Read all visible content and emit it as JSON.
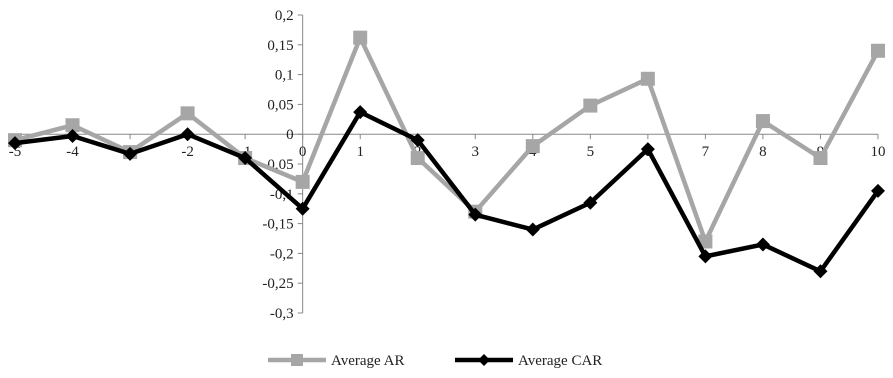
{
  "chart_data": {
    "type": "line",
    "title": "",
    "xlabel": "",
    "ylabel": "",
    "x": [
      -5,
      -4,
      -3,
      -2,
      -1,
      0,
      1,
      2,
      3,
      4,
      5,
      6,
      7,
      8,
      9,
      10
    ],
    "ylim": [
      -0.3,
      0.2
    ],
    "xlim": [
      -5,
      10
    ],
    "y_ticks": [
      0.2,
      0.15,
      0.1,
      0.05,
      0,
      -0.05,
      -0.1,
      -0.15,
      -0.2,
      -0.25,
      -0.3
    ],
    "y_tick_labels": [
      "0,2",
      "0,15",
      "0,1",
      "0,05",
      "0",
      "-0,05",
      "-0,1",
      "-0,15",
      "-0,2",
      "-0,25",
      "-0,3"
    ],
    "x_tick_labels": [
      "-5",
      "-4",
      "-3",
      "-2",
      "-1",
      "0",
      "1",
      "2",
      "3",
      "4",
      "5",
      "6",
      "7",
      "8",
      "9",
      "10"
    ],
    "grid": false,
    "legend_position": "bottom",
    "series": [
      {
        "name": "Average AR",
        "color": "#a6a6a6",
        "marker": "square",
        "values": [
          -0.01,
          0.015,
          -0.03,
          0.035,
          -0.04,
          -0.08,
          0.162,
          -0.04,
          -0.13,
          -0.02,
          0.048,
          0.093,
          -0.18,
          0.022,
          -0.04,
          0.14
        ]
      },
      {
        "name": "Average CAR",
        "color": "#000000",
        "marker": "diamond",
        "values": [
          -0.015,
          -0.003,
          -0.033,
          0.0,
          -0.04,
          -0.125,
          0.037,
          -0.01,
          -0.135,
          -0.16,
          -0.115,
          -0.025,
          -0.205,
          -0.185,
          -0.23,
          -0.095
        ]
      }
    ]
  }
}
